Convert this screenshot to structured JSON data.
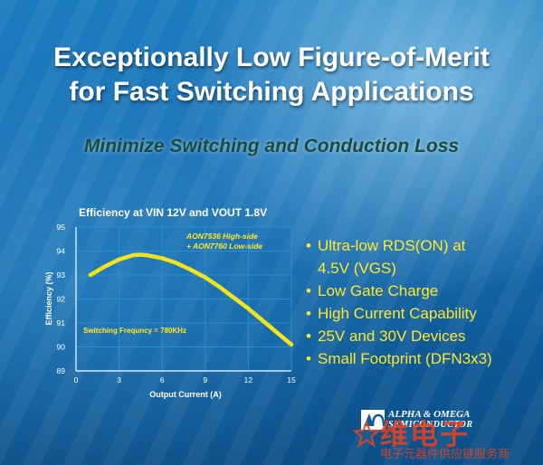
{
  "banner": {
    "title_line1": "Exceptionally Low Figure-of-Merit",
    "title_line2": "for Fast Switching Applications",
    "subtitle": "Minimize Switching and Conduction Loss"
  },
  "chart_data": {
    "type": "line",
    "title": "Efficiency at VIN 12V and VOUT 1.8V",
    "xlabel": "Output Current (A)",
    "ylabel": "Efficiency (%)",
    "xlim": [
      0,
      15
    ],
    "ylim": [
      89,
      95
    ],
    "xticks": [
      "0",
      "3",
      "6",
      "9",
      "12",
      "15"
    ],
    "yticks": [
      "89",
      "90",
      "91",
      "92",
      "93",
      "94",
      "95"
    ],
    "grid": true,
    "series": [
      {
        "x": [
          1.0,
          2.0,
          3.0,
          4.0,
          4.5,
          5.0,
          6.0,
          7.0,
          8.0,
          9.0,
          10.0,
          11.0,
          12.0,
          13.0,
          14.0,
          15.0
        ],
        "y": [
          93.0,
          93.35,
          93.65,
          93.83,
          93.85,
          93.82,
          93.7,
          93.5,
          93.22,
          92.9,
          92.5,
          92.05,
          91.6,
          91.1,
          90.6,
          90.1
        ]
      }
    ],
    "annotations": {
      "device_line1": "AON7536 High-side",
      "device_line2": "+ AON7760 Low-side",
      "switching": "Switching Frequncy = 780KHz"
    },
    "colors": {
      "line": "#f2e31c",
      "annotation": "#ffe82a",
      "grid": "#2a8fd0",
      "axis": "#ffffff"
    }
  },
  "features": [
    "Ultra-low RDS(ON) at",
    "4.5V (VGS)",
    "Low Gate Charge",
    "High Current Capability",
    "25V and 30V Devices",
    "Small Footprint (DFN3x3)"
  ],
  "logo": {
    "line1": "ALPHA & OMEGA",
    "line2": "SEMICONDUCTOR"
  },
  "watermark": {
    "brand": "维电子",
    "tagline": "电子元器件供应链服务商"
  }
}
